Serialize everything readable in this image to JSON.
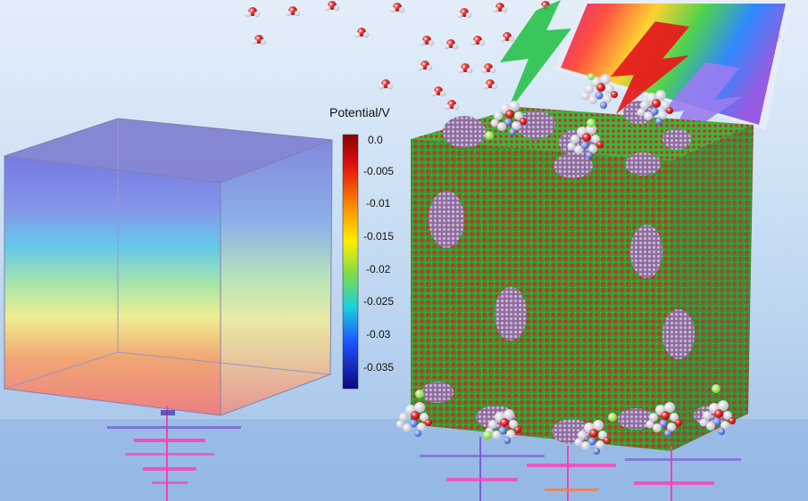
{
  "colorbar": {
    "title": "Potential/V",
    "ticks": [
      "0.0",
      "-0.005",
      "-0.01",
      "-0.015",
      "-0.02",
      "-0.025",
      "-0.03",
      "-0.035"
    ]
  },
  "colors": {
    "background_top": "#cfe3f5",
    "background_bottom": "#a9c8ea",
    "crystal_green": "#2ea02e",
    "crystal_red": "#d42a2a",
    "quantum_dot": "#9c7fa8",
    "bolt_green": "#28c24a",
    "bolt_red": "#e51c1c",
    "bolt_violet": "#9a7cf0",
    "signal_pink": "#ff3fb2"
  },
  "icons": [
    "potential-cube-icon",
    "crystal-lattice-icon",
    "lightning-bolt-icon",
    "spectrum-panel-icon",
    "water-molecule-icon",
    "ligand-molecule-icon"
  ]
}
